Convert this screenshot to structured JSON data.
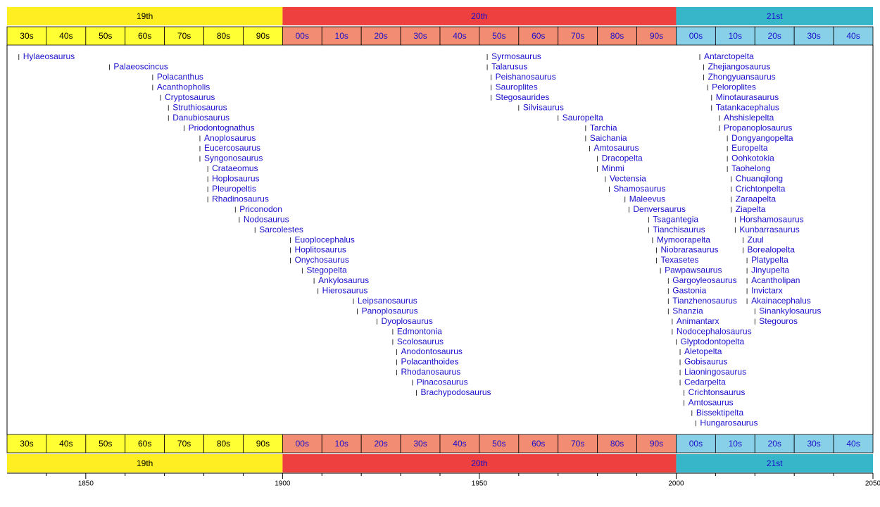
{
  "chart_data": {
    "type": "timeline",
    "xlim": [
      1830,
      2050
    ],
    "xticks": [
      1850,
      1900,
      1950,
      2000,
      2050
    ],
    "minor_xticks": [
      1840,
      1860,
      1870,
      1880,
      1890,
      1910,
      1920,
      1930,
      1940,
      1960,
      1970,
      1980,
      1990,
      2010,
      2020,
      2030,
      2040
    ],
    "eras": [
      {
        "label": "19th",
        "start": 1800,
        "end": 1900,
        "color": "#ffee22",
        "decade_color": "#ffff33",
        "text_color": "#000000",
        "decades": [
          {
            "label": "30s",
            "start": 1830,
            "end": 1840
          },
          {
            "label": "40s",
            "start": 1840,
            "end": 1850
          },
          {
            "label": "50s",
            "start": 1850,
            "end": 1860
          },
          {
            "label": "60s",
            "start": 1860,
            "end": 1870
          },
          {
            "label": "70s",
            "start": 1870,
            "end": 1880
          },
          {
            "label": "80s",
            "start": 1880,
            "end": 1890
          },
          {
            "label": "90s",
            "start": 1890,
            "end": 1900
          }
        ]
      },
      {
        "label": "20th",
        "start": 1900,
        "end": 2000,
        "color": "#ef4040",
        "decade_color": "#f28c72",
        "text_color": "#1a0fcc",
        "decades": [
          {
            "label": "00s",
            "start": 1900,
            "end": 1910
          },
          {
            "label": "10s",
            "start": 1910,
            "end": 1920
          },
          {
            "label": "20s",
            "start": 1920,
            "end": 1930
          },
          {
            "label": "30s",
            "start": 1930,
            "end": 1940
          },
          {
            "label": "40s",
            "start": 1940,
            "end": 1950
          },
          {
            "label": "50s",
            "start": 1950,
            "end": 1960
          },
          {
            "label": "60s",
            "start": 1960,
            "end": 1970
          },
          {
            "label": "70s",
            "start": 1970,
            "end": 1980
          },
          {
            "label": "80s",
            "start": 1980,
            "end": 1990
          },
          {
            "label": "90s",
            "start": 1990,
            "end": 2000
          }
        ]
      },
      {
        "label": "21st",
        "start": 2000,
        "end": 2100,
        "color": "#38b6c9",
        "decade_color": "#88d0e8",
        "text_color": "#1a0fcc",
        "decades": [
          {
            "label": "00s",
            "start": 2000,
            "end": 2010
          },
          {
            "label": "10s",
            "start": 2010,
            "end": 2020
          },
          {
            "label": "20s",
            "start": 2020,
            "end": 2030
          },
          {
            "label": "30s",
            "start": 2030,
            "end": 2040
          },
          {
            "label": "40s",
            "start": 2040,
            "end": 2050
          }
        ]
      }
    ],
    "item_color": "#1a0fcc",
    "groups": [
      {
        "items": [
          {
            "name": "Hylaeosaurus",
            "year": 1833
          },
          {
            "name": "Palaeoscincus",
            "year": 1856
          },
          {
            "name": "Polacanthus",
            "year": 1867
          },
          {
            "name": "Acanthopholis",
            "year": 1867
          },
          {
            "name": "Cryptosaurus",
            "year": 1869
          },
          {
            "name": "Struthiosaurus",
            "year": 1871
          },
          {
            "name": "Danubiosaurus",
            "year": 1871
          },
          {
            "name": "Priodontognathus",
            "year": 1875
          },
          {
            "name": "Anoplosaurus",
            "year": 1879
          },
          {
            "name": "Eucercosaurus",
            "year": 1879
          },
          {
            "name": "Syngonosaurus",
            "year": 1879
          },
          {
            "name": "Crataeomus",
            "year": 1881
          },
          {
            "name": "Hoplosaurus",
            "year": 1881
          },
          {
            "name": "Pleuropeltis",
            "year": 1881
          },
          {
            "name": "Rhadinosaurus",
            "year": 1881
          },
          {
            "name": "Priconodon",
            "year": 1888
          },
          {
            "name": "Nodosaurus",
            "year": 1889
          },
          {
            "name": "Sarcolestes",
            "year": 1893
          },
          {
            "name": "Euoplocephalus",
            "year": 1902
          },
          {
            "name": "Hoplitosaurus",
            "year": 1902
          },
          {
            "name": "Onychosaurus",
            "year": 1902
          },
          {
            "name": "Stegopelta",
            "year": 1905
          },
          {
            "name": "Ankylosaurus",
            "year": 1908
          },
          {
            "name": "Hierosaurus",
            "year": 1909
          },
          {
            "name": "Leipsanosaurus",
            "year": 1918
          },
          {
            "name": "Panoplosaurus",
            "year": 1919
          },
          {
            "name": "Dyoplosaurus",
            "year": 1924
          },
          {
            "name": "Edmontonia",
            "year": 1928
          },
          {
            "name": "Scolosaurus",
            "year": 1928
          },
          {
            "name": "Anodontosaurus",
            "year": 1929
          },
          {
            "name": "Polacanthoides",
            "year": 1929
          },
          {
            "name": "Rhodanosaurus",
            "year": 1929
          },
          {
            "name": "Pinacosaurus",
            "year": 1933
          },
          {
            "name": "Brachypodosaurus",
            "year": 1934
          }
        ]
      },
      {
        "items": [
          {
            "name": "Syrmosaurus",
            "year": 1952
          },
          {
            "name": "Talarusus",
            "year": 1952
          },
          {
            "name": "Peishanosaurus",
            "year": 1953
          },
          {
            "name": "Sauroplites",
            "year": 1953
          },
          {
            "name": "Stegosaurides",
            "year": 1953
          },
          {
            "name": "Silvisaurus",
            "year": 1960
          },
          {
            "name": "Sauropelta",
            "year": 1970
          },
          {
            "name": "Tarchia",
            "year": 1977
          },
          {
            "name": "Saichania",
            "year": 1977
          },
          {
            "name": "Amtosaurus",
            "year": 1978
          },
          {
            "name": "Dracopelta",
            "year": 1980
          },
          {
            "name": "Minmi",
            "year": 1980
          },
          {
            "name": "Vectensia",
            "year": 1982
          },
          {
            "name": "Shamosaurus",
            "year": 1983
          },
          {
            "name": "Maleevus",
            "year": 1987
          },
          {
            "name": "Denversaurus",
            "year": 1988
          },
          {
            "name": "Tsagantegia",
            "year": 1993
          },
          {
            "name": "Tianchisaurus",
            "year": 1993
          },
          {
            "name": "Mymoorapelta",
            "year": 1994
          },
          {
            "name": "Niobrarasaurus",
            "year": 1995
          },
          {
            "name": "Texasetes",
            "year": 1995
          },
          {
            "name": "Pawpawsaurus",
            "year": 1996
          },
          {
            "name": "Gargoyleosaurus",
            "year": 1998
          },
          {
            "name": "Gastonia",
            "year": 1998
          },
          {
            "name": "Tianzhenosaurus",
            "year": 1998
          },
          {
            "name": "Shanzia",
            "year": 1998
          },
          {
            "name": "Animantarx",
            "year": 1999
          },
          {
            "name": "Nodocephalosaurus",
            "year": 1999
          },
          {
            "name": "Glyptodontopelta",
            "year": 2000
          },
          {
            "name": "Aletopelta",
            "year": 2001
          },
          {
            "name": "Gobisaurus",
            "year": 2001
          },
          {
            "name": "Liaoningosaurus",
            "year": 2001
          },
          {
            "name": "Cedarpelta",
            "year": 2001
          },
          {
            "name": "Crichtonsaurus",
            "year": 2002
          },
          {
            "name": "Amtosaurus",
            "year": 2002
          },
          {
            "name": "Bissektipelta",
            "year": 2004
          },
          {
            "name": "Hungarosaurus",
            "year": 2005
          }
        ]
      },
      {
        "items": [
          {
            "name": "Antarctopelta",
            "year": 2006
          },
          {
            "name": "Zhejiangosaurus",
            "year": 2007
          },
          {
            "name": "Zhongyuansaurus",
            "year": 2007
          },
          {
            "name": "Peloroplites",
            "year": 2008
          },
          {
            "name": "Minotaurasaurus",
            "year": 2009
          },
          {
            "name": "Tatankacephalus",
            "year": 2009
          },
          {
            "name": "Ahshislepelta",
            "year": 2011
          },
          {
            "name": "Propanoplosaurus",
            "year": 2011
          },
          {
            "name": "Dongyangopelta",
            "year": 2013
          },
          {
            "name": "Europelta",
            "year": 2013
          },
          {
            "name": "Oohkotokia",
            "year": 2013
          },
          {
            "name": "Taohelong",
            "year": 2013
          },
          {
            "name": "Chuanqilong",
            "year": 2014
          },
          {
            "name": "Crichtonpelta",
            "year": 2014
          },
          {
            "name": "Zaraapelta",
            "year": 2014
          },
          {
            "name": "Ziapelta",
            "year": 2014
          },
          {
            "name": "Horshamosaurus",
            "year": 2015
          },
          {
            "name": "Kunbarrasaurus",
            "year": 2015
          },
          {
            "name": "Zuul",
            "year": 2017
          },
          {
            "name": "Borealopelta",
            "year": 2017
          },
          {
            "name": "Platypelta",
            "year": 2018
          },
          {
            "name": "Jinyupelta",
            "year": 2018
          },
          {
            "name": "Acantholipan",
            "year": 2018
          },
          {
            "name": "Invictarx",
            "year": 2018
          },
          {
            "name": "Akainacephalus",
            "year": 2018
          },
          {
            "name": "Sinankylosaurus",
            "year": 2020
          },
          {
            "name": "Stegouros",
            "year": 2020
          }
        ]
      }
    ]
  }
}
